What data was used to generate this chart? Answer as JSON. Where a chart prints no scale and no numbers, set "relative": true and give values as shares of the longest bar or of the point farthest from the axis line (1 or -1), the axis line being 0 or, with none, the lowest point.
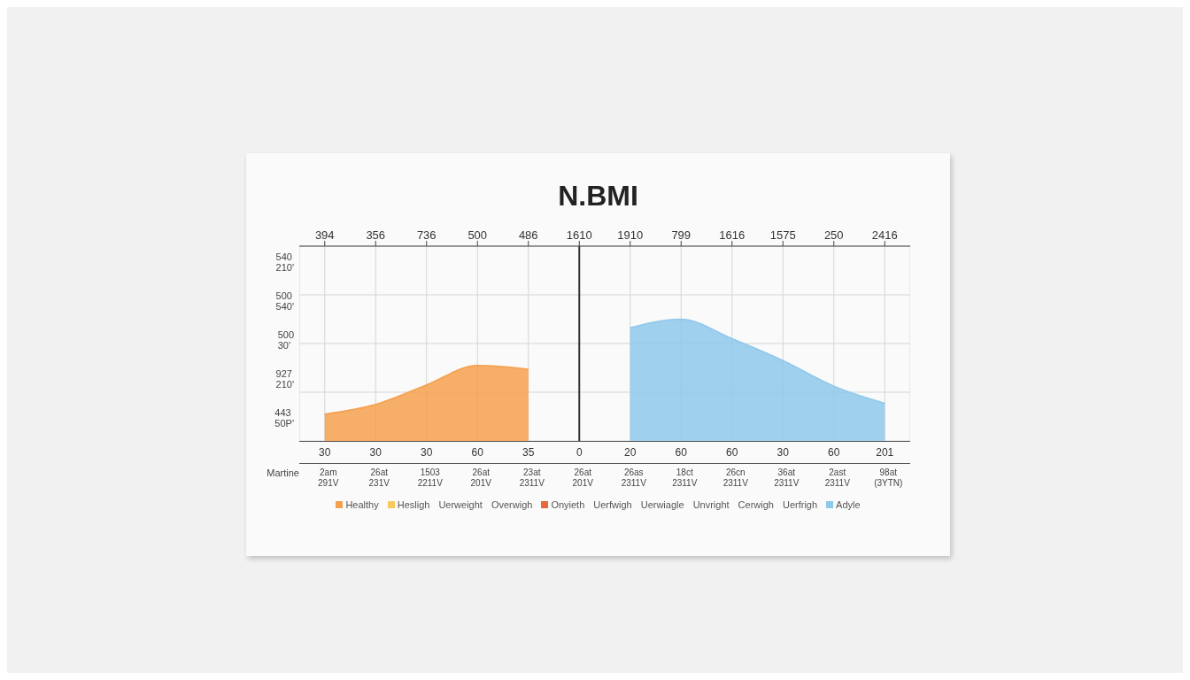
{
  "chart_data": {
    "type": "area",
    "title": "N.BMI",
    "relative": true,
    "grid": true,
    "legend": "bottom",
    "categories": [
      "394",
      "356",
      "736",
      "500",
      "486",
      "1610",
      "1910",
      "799",
      "1616",
      "1575",
      "250",
      "2416"
    ],
    "series": [
      {
        "name": "Healthy",
        "color": "#f5a04e",
        "values": [
          0.22,
          0.3,
          0.46,
          0.62,
          0.59,
          null,
          null,
          null,
          null,
          null,
          null,
          null
        ]
      },
      {
        "name": "Hesligh",
        "color": "#f7c95e",
        "values": [
          null,
          null,
          null,
          null,
          null,
          null,
          null,
          null,
          null,
          null,
          null,
          null
        ]
      },
      {
        "name": "Uerweight",
        "values": [
          null,
          null,
          null,
          null,
          null,
          null,
          null,
          null,
          null,
          null,
          null,
          null
        ]
      },
      {
        "name": "Overwigh",
        "values": [
          null,
          null,
          null,
          null,
          null,
          null,
          null,
          null,
          null,
          null,
          null,
          null
        ]
      },
      {
        "name": "Onyieth",
        "color": "#e8693a",
        "values": [
          null,
          null,
          null,
          null,
          null,
          null,
          null,
          null,
          null,
          null,
          null,
          null
        ]
      },
      {
        "name": "Uerfwigh",
        "values": [
          null,
          null,
          null,
          null,
          null,
          null,
          null,
          null,
          null,
          null,
          null,
          null
        ]
      },
      {
        "name": "Uerwiagle",
        "values": [
          null,
          null,
          null,
          null,
          null,
          null,
          null,
          null,
          null,
          null,
          null,
          null
        ]
      },
      {
        "name": "Unvright",
        "values": [
          null,
          null,
          null,
          null,
          null,
          null,
          null,
          null,
          null,
          null,
          null,
          null
        ]
      },
      {
        "name": "Cerwigh",
        "values": [
          null,
          null,
          null,
          null,
          null,
          null,
          null,
          null,
          null,
          null,
          null,
          null
        ]
      },
      {
        "name": "Uerfrigh",
        "values": [
          null,
          null,
          null,
          null,
          null,
          null,
          null,
          null,
          null,
          null,
          null,
          null
        ]
      },
      {
        "name": "Adyle",
        "color": "#8ec8ea",
        "values": [
          null,
          null,
          null,
          null,
          null,
          null,
          0.93,
          1,
          0.84,
          0.66,
          0.45,
          0.31
        ]
      }
    ],
    "ref_lines": [
      {
        "axis": "x",
        "value": "1610"
      }
    ],
    "annotations": [
      "540\n210'",
      "500\n540'",
      "500\n30'",
      "927\n210'",
      "443\n50P'",
      "Martine",
      "30",
      "30",
      "30",
      "60",
      "35",
      "0",
      "20",
      "60",
      "60",
      "30",
      "60",
      "201",
      "2am\n291V",
      "26at\n231V",
      "1503\n2211V",
      "26at\n201V",
      "23at\n2311V",
      "26at\n201V",
      "26as\n2311V",
      "18ct\n2311V",
      "26cn\n2311V",
      "36at\n2311V",
      "2ast\n2311V",
      "98at\n(3YTN)"
    ]
  }
}
